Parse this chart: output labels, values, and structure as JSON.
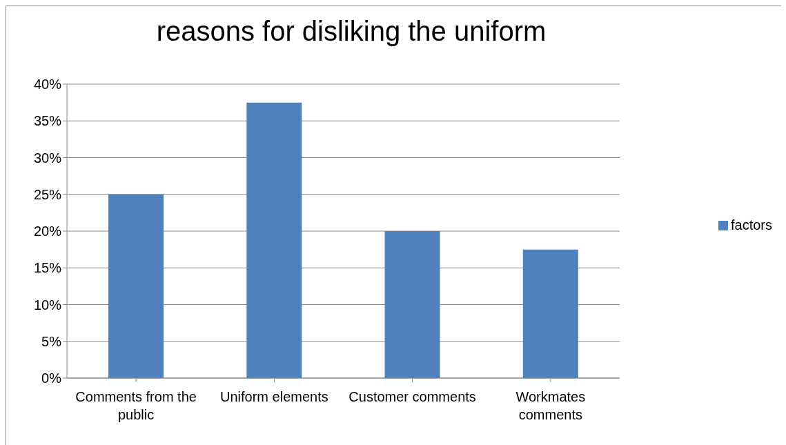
{
  "chart_data": {
    "type": "bar",
    "title": "reasons for disliking the uniform",
    "categories": [
      "Comments from the public",
      "Uniform elements",
      "Customer comments",
      "Workmates comments"
    ],
    "series": [
      {
        "name": "factors",
        "color": "#4f81bd",
        "values": [
          25,
          37.5,
          20,
          17.5
        ]
      }
    ],
    "ylim": [
      0,
      40
    ],
    "yticks": [
      {
        "value": 0,
        "label": "0%"
      },
      {
        "value": 5,
        "label": "5%"
      },
      {
        "value": 10,
        "label": "10%"
      },
      {
        "value": 15,
        "label": "15%"
      },
      {
        "value": 20,
        "label": "20%"
      },
      {
        "value": 25,
        "label": "25%"
      },
      {
        "value": 30,
        "label": "30%"
      },
      {
        "value": 35,
        "label": "35%"
      },
      {
        "value": 40,
        "label": "40%"
      }
    ],
    "grid": "y",
    "legend": "right"
  }
}
